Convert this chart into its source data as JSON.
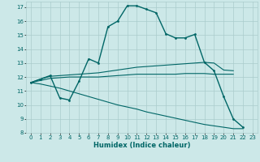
{
  "title": "",
  "xlabel": "Humidex (Indice chaleur)",
  "ylabel": "",
  "xlim": [
    -0.5,
    23.5
  ],
  "ylim": [
    8,
    17.4
  ],
  "yticks": [
    8,
    9,
    10,
    11,
    12,
    13,
    14,
    15,
    16,
    17
  ],
  "xticks": [
    0,
    1,
    2,
    3,
    4,
    5,
    6,
    7,
    8,
    9,
    10,
    11,
    12,
    13,
    14,
    15,
    16,
    17,
    18,
    19,
    20,
    21,
    22,
    23
  ],
  "bg_color": "#cce8e8",
  "grid_color": "#aacccc",
  "line_color": "#006666",
  "lines": [
    {
      "x": [
        0,
        1,
        2,
        3,
        4,
        5,
        6,
        7,
        8,
        9,
        10,
        11,
        12,
        13,
        14,
        15,
        16,
        17,
        18,
        19,
        20,
        21,
        22
      ],
      "y": [
        11.6,
        11.85,
        12.1,
        10.5,
        10.35,
        11.7,
        13.3,
        13.0,
        15.6,
        16.0,
        17.1,
        17.1,
        16.85,
        16.6,
        15.1,
        14.8,
        14.8,
        15.05,
        13.05,
        12.45,
        10.6,
        9.0,
        8.4
      ],
      "marker": true,
      "lw": 1.0
    },
    {
      "x": [
        0,
        1,
        2,
        3,
        4,
        5,
        6,
        7,
        8,
        9,
        10,
        11,
        12,
        13,
        14,
        15,
        16,
        17,
        18,
        19,
        20,
        21
      ],
      "y": [
        11.6,
        11.85,
        12.05,
        12.1,
        12.15,
        12.2,
        12.25,
        12.3,
        12.4,
        12.5,
        12.6,
        12.7,
        12.75,
        12.8,
        12.85,
        12.9,
        12.95,
        13.0,
        13.05,
        13.0,
        12.5,
        12.45
      ],
      "marker": false,
      "lw": 0.8
    },
    {
      "x": [
        0,
        1,
        2,
        3,
        4,
        5,
        6,
        7,
        8,
        9,
        10,
        11,
        12,
        13,
        14,
        15,
        16,
        17,
        18,
        19,
        20,
        21
      ],
      "y": [
        11.6,
        11.75,
        11.9,
        11.95,
        12.0,
        12.0,
        12.0,
        12.0,
        12.05,
        12.1,
        12.15,
        12.2,
        12.2,
        12.2,
        12.2,
        12.2,
        12.25,
        12.25,
        12.25,
        12.2,
        12.2,
        12.2
      ],
      "marker": false,
      "lw": 0.8
    },
    {
      "x": [
        0,
        1,
        2,
        3,
        4,
        5,
        6,
        7,
        8,
        9,
        10,
        11,
        12,
        13,
        14,
        15,
        16,
        17,
        18,
        19,
        20,
        21,
        22
      ],
      "y": [
        11.6,
        11.5,
        11.35,
        11.2,
        11.0,
        10.8,
        10.6,
        10.4,
        10.2,
        10.0,
        9.85,
        9.7,
        9.5,
        9.35,
        9.2,
        9.05,
        8.9,
        8.75,
        8.6,
        8.5,
        8.4,
        8.3,
        8.3
      ],
      "marker": false,
      "lw": 0.8
    }
  ]
}
